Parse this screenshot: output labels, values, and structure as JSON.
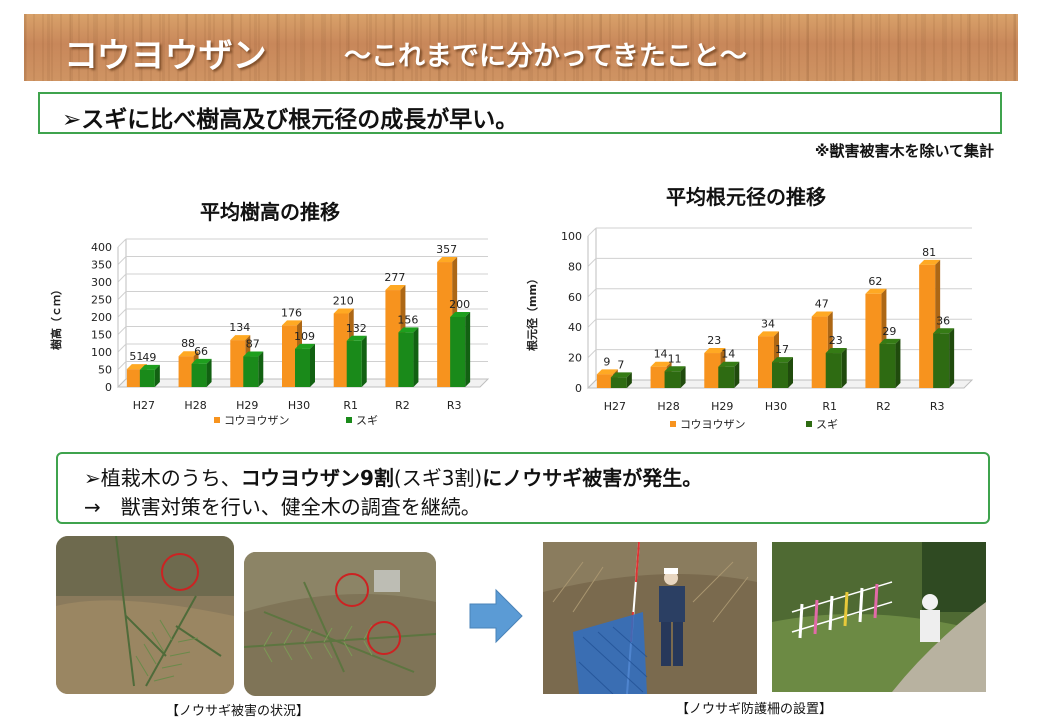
{
  "header": {
    "title": "コウヨウザン",
    "subtitle": "～これまでに分かってきたこと～"
  },
  "summary1": {
    "text": "➢スギに比べ樹高及び根元径の成長が早い。"
  },
  "note": "※獣害被害木を除いて集計",
  "chart_data": [
    {
      "type": "bar",
      "title": "平均樹高の推移",
      "ylabel": "樹高（ｃｍ）",
      "xlabel": "",
      "categories": [
        "H27",
        "H28",
        "H29",
        "H30",
        "R1",
        "R2",
        "R3"
      ],
      "series": [
        {
          "name": "コウヨウザン",
          "values": [
            51,
            88,
            134,
            176,
            210,
            277,
            357
          ],
          "color": "#f7931e"
        },
        {
          "name": "スギ",
          "values": [
            49,
            66,
            87,
            109,
            132,
            156,
            200
          ],
          "color": "#1a8a1a"
        }
      ],
      "ylim": [
        0,
        400
      ],
      "yticks": [
        0,
        50,
        100,
        150,
        200,
        250,
        300,
        350,
        400
      ],
      "grid": true,
      "legend": "bottom"
    },
    {
      "type": "bar",
      "title": "平均根元径の推移",
      "ylabel": "根元径（mm）",
      "xlabel": "",
      "categories": [
        "H27",
        "H28",
        "H29",
        "H30",
        "R1",
        "R2",
        "R3"
      ],
      "series": [
        {
          "name": "コウヨウザン",
          "values": [
            9,
            14,
            23,
            34,
            47,
            62,
            81
          ],
          "color": "#f7931e"
        },
        {
          "name": "スギ",
          "values": [
            7,
            11,
            14,
            17,
            23,
            29,
            36
          ],
          "color": "#2e6b12"
        }
      ],
      "ylim": [
        0,
        100
      ],
      "yticks": [
        0,
        20,
        40,
        60,
        80,
        100
      ],
      "grid": true,
      "legend": "bottom"
    }
  ],
  "summary2": {
    "line1_prefix": "➢植栽木のうち、",
    "line1_bold1": "コウヨウザン9割",
    "line1_mid": "(スギ3割)",
    "line1_bold2": "にノウサギ被害が発生。",
    "line2": "→　獣害対策を行い、健全木の調査を継続。"
  },
  "captions": {
    "left": "【ノウサギ被害の状況】",
    "right": "【ノウサギ防護柵の設置】"
  }
}
